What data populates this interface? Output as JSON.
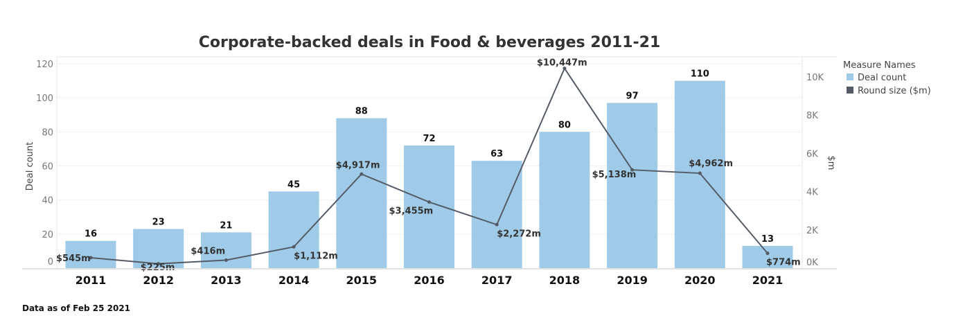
{
  "chart_data": {
    "type": "bar+line",
    "title": "Corporate-backed deals in Food & beverages 2011-21",
    "categories": [
      "2011",
      "2012",
      "2013",
      "2014",
      "2015",
      "2016",
      "2017",
      "2018",
      "2019",
      "2020",
      "2021"
    ],
    "series": [
      {
        "name": "Deal count",
        "type": "bar",
        "axis": "left",
        "color": "#9fcbe8",
        "values": [
          16,
          23,
          21,
          45,
          88,
          72,
          63,
          80,
          97,
          110,
          13
        ],
        "labels": [
          "16",
          "23",
          "21",
          "45",
          "88",
          "72",
          "63",
          "80",
          "97",
          "110",
          "13"
        ]
      },
      {
        "name": "Round size ($m)",
        "type": "line",
        "axis": "right",
        "color": "#555b66",
        "values": [
          545,
          225,
          416,
          1112,
          4917,
          3455,
          2272,
          10447,
          5138,
          4962,
          774
        ],
        "labels": [
          "$545m",
          "$225m",
          "$416m",
          "$1,112m",
          "$4,917m",
          "$3,455m",
          "$2,272m",
          "$10,447m",
          "$5,138m",
          "$4,962m",
          "$774m"
        ]
      }
    ],
    "ylabel": "Deal count",
    "ylim": [
      0,
      120
    ],
    "yticks": [
      "0",
      "20",
      "40",
      "60",
      "80",
      "100",
      "120"
    ],
    "y2label": "$m",
    "y2lim": [
      0,
      10000
    ],
    "y2ticks": [
      "0K",
      "2K",
      "4K",
      "6K",
      "8K",
      "10K"
    ],
    "legend": {
      "title": "Measure Names",
      "placement": "right"
    },
    "grid": true
  },
  "footnote": "Data as of Feb 25 2021"
}
